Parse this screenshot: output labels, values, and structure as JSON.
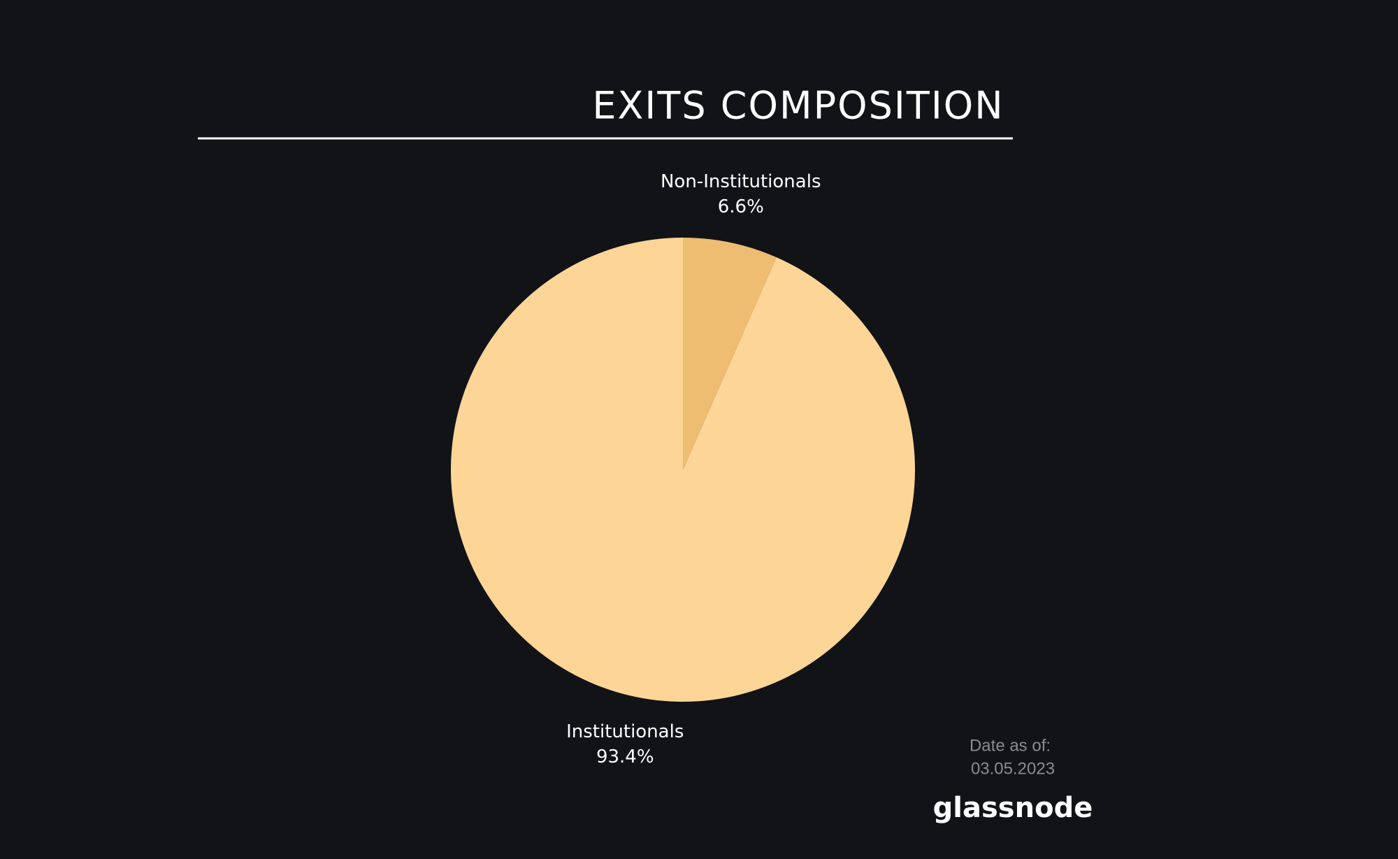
{
  "chart_data": {
    "type": "pie",
    "title": "EXITS COMPOSITION",
    "categories": [
      "Non-Institutionals",
      "Institutionals"
    ],
    "values": [
      6.6,
      93.4
    ],
    "value_labels": [
      "6.6%",
      "93.4%"
    ],
    "colors": [
      "#eebd71",
      "#fdd596"
    ],
    "date_label": "Date as of:",
    "date": "03.05.2023",
    "brand": "glassnode"
  }
}
